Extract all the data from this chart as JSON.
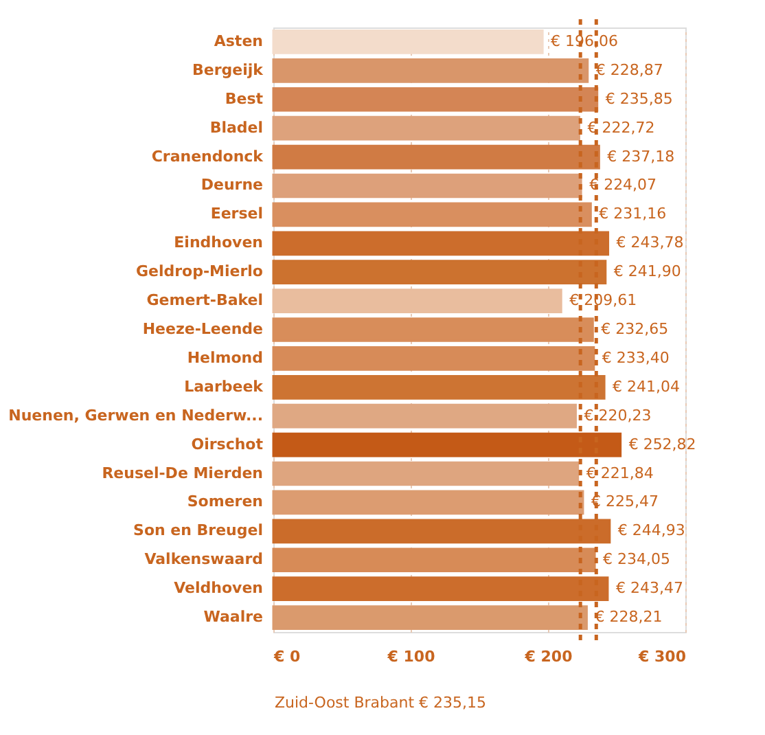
{
  "chart_data": {
    "type": "bar",
    "orientation": "horizontal",
    "categories": [
      "Asten",
      "Bergeijk",
      "Best",
      "Bladel",
      "Cranendonck",
      "Deurne",
      "Eersel",
      "Eindhoven",
      "Geldrop-Mierlo",
      "Gemert-Bakel",
      "Heeze-Leende",
      "Helmond",
      "Laarbeek",
      "Nuenen, Gerwen en Nederw...",
      "Oirschot",
      "Reusel-De Mierden",
      "Someren",
      "Son en Breugel",
      "Valkenswaard",
      "Veldhoven",
      "Waalre"
    ],
    "values": [
      196.06,
      228.87,
      235.85,
      222.72,
      237.18,
      224.07,
      231.16,
      243.78,
      241.9,
      209.61,
      232.65,
      233.4,
      241.04,
      220.23,
      252.82,
      221.84,
      225.47,
      244.93,
      234.05,
      243.47,
      228.21
    ],
    "value_labels": [
      "€ 196,06",
      "€ 228,87",
      "€ 235,85",
      "€ 222,72",
      "€ 237,18",
      "€ 224,07",
      "€ 231,16",
      "€ 243,78",
      "€ 241,90",
      "€ 209,61",
      "€ 232,65",
      "€ 233,40",
      "€ 241,04",
      "€ 220,23",
      "€ 252,82",
      "€ 221,84",
      "€ 225,47",
      "€ 244,93",
      "€ 234,05",
      "€ 243,47",
      "€ 228,21"
    ],
    "colors": [
      "#f3dccb",
      "#d9966a",
      "#d48555",
      "#dda27c",
      "#d07b44",
      "#dda07a",
      "#d98f5f",
      "#cc6d2c",
      "#cc722f",
      "#e9bd9e",
      "#d88d5a",
      "#d78b58",
      "#cd7433",
      "#dfa883",
      "#c45a17",
      "#dea57f",
      "#dc9c71",
      "#cb6c2a",
      "#d78b57",
      "#cc6d2c",
      "#da9a6d"
    ],
    "xlim": [
      0,
      300
    ],
    "xticks": [
      {
        "value": 0,
        "label": "€ 0"
      },
      {
        "value": 100,
        "label": "€ 100"
      },
      {
        "value": 200,
        "label": "€ 200"
      },
      {
        "value": 300,
        "label": "€ 300"
      }
    ],
    "grid": "x",
    "ref_lines": [
      {
        "axis": "x",
        "value": 235.15,
        "label": "Zuid-Oost Brabant € 235,15",
        "color": "#c8651f",
        "line_style": "dashed"
      },
      {
        "axis": "x",
        "value": 223.6,
        "color": "#c8651f",
        "line_style": "dashed"
      }
    ]
  }
}
